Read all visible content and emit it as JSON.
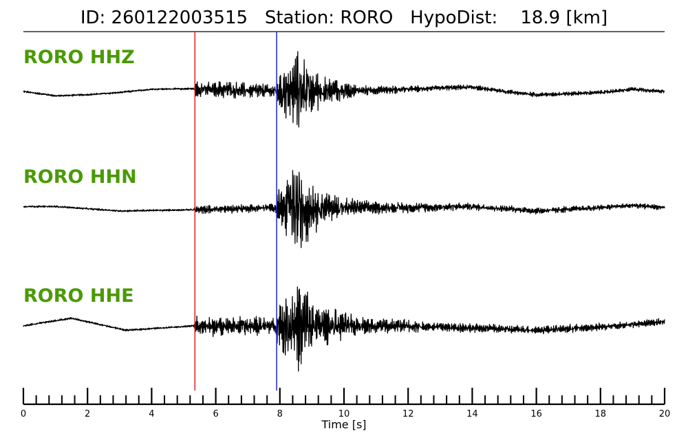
{
  "title": {
    "text": "ID: 260122003515   Station: RORO   HypoDist:    18.9 [km]"
  },
  "chart_data": {
    "type": "line",
    "xlabel": "Time [s]",
    "xlim": [
      0,
      20
    ],
    "x_major_ticks": [
      0,
      2,
      4,
      6,
      8,
      10,
      12,
      14,
      16,
      18,
      20
    ],
    "x_minor_tick_step": 0.4,
    "picks": [
      {
        "phase": "P",
        "time": 5.35,
        "color": "#e41a1c"
      },
      {
        "phase": "S",
        "time": 7.9,
        "color": "#1f1fd6"
      }
    ],
    "label_color": "#4a9a06",
    "trace_color": "#000000",
    "series": [
      {
        "name": "RORO HHZ",
        "envelope": [
          [
            0.0,
            0.02
          ],
          [
            5.3,
            0.02
          ],
          [
            5.4,
            0.18
          ],
          [
            7.85,
            0.15
          ],
          [
            7.95,
            0.45
          ],
          [
            8.6,
            0.8
          ],
          [
            9.3,
            0.3
          ],
          [
            10.5,
            0.1
          ],
          [
            13.0,
            0.05
          ],
          [
            20.0,
            0.04
          ]
        ],
        "trend": [
          [
            0,
            0.0
          ],
          [
            1,
            -0.08
          ],
          [
            2,
            -0.06
          ],
          [
            3,
            -0.02
          ],
          [
            4,
            0.04
          ],
          [
            5.3,
            0.05
          ],
          [
            8,
            0.0
          ],
          [
            11,
            0.02
          ],
          [
            13,
            0.06
          ],
          [
            14,
            0.08
          ],
          [
            15,
            0.0
          ],
          [
            16,
            -0.06
          ],
          [
            18,
            -0.02
          ],
          [
            19,
            0.04
          ],
          [
            20,
            0.0
          ]
        ]
      },
      {
        "name": "RORO HHN",
        "envelope": [
          [
            0.0,
            0.02
          ],
          [
            5.3,
            0.02
          ],
          [
            5.4,
            0.08
          ],
          [
            7.85,
            0.09
          ],
          [
            7.95,
            0.55
          ],
          [
            8.5,
            0.95
          ],
          [
            9.3,
            0.35
          ],
          [
            10.5,
            0.14
          ],
          [
            13.0,
            0.08
          ],
          [
            20.0,
            0.05
          ]
        ],
        "trend": [
          [
            0,
            0.02
          ],
          [
            1,
            0.02
          ],
          [
            3,
            -0.06
          ],
          [
            5.3,
            -0.04
          ],
          [
            8,
            0.0
          ],
          [
            12,
            0.0
          ],
          [
            14,
            0.02
          ],
          [
            16,
            -0.06
          ],
          [
            18,
            0.0
          ],
          [
            19,
            0.04
          ],
          [
            20,
            0.0
          ]
        ]
      },
      {
        "name": "RORO HHE",
        "envelope": [
          [
            0.0,
            0.02
          ],
          [
            5.3,
            0.02
          ],
          [
            5.4,
            0.22
          ],
          [
            7.85,
            0.18
          ],
          [
            7.95,
            0.6
          ],
          [
            8.6,
            0.9
          ],
          [
            9.3,
            0.4
          ],
          [
            10.5,
            0.18
          ],
          [
            13.0,
            0.1
          ],
          [
            20.0,
            0.07
          ]
        ],
        "trend": [
          [
            0,
            0.0
          ],
          [
            1.5,
            0.14
          ],
          [
            3.2,
            -0.08
          ],
          [
            5.3,
            0.0
          ],
          [
            8,
            0.0
          ],
          [
            12,
            0.0
          ],
          [
            16,
            -0.08
          ],
          [
            18,
            -0.02
          ],
          [
            20,
            0.08
          ]
        ]
      }
    ]
  }
}
